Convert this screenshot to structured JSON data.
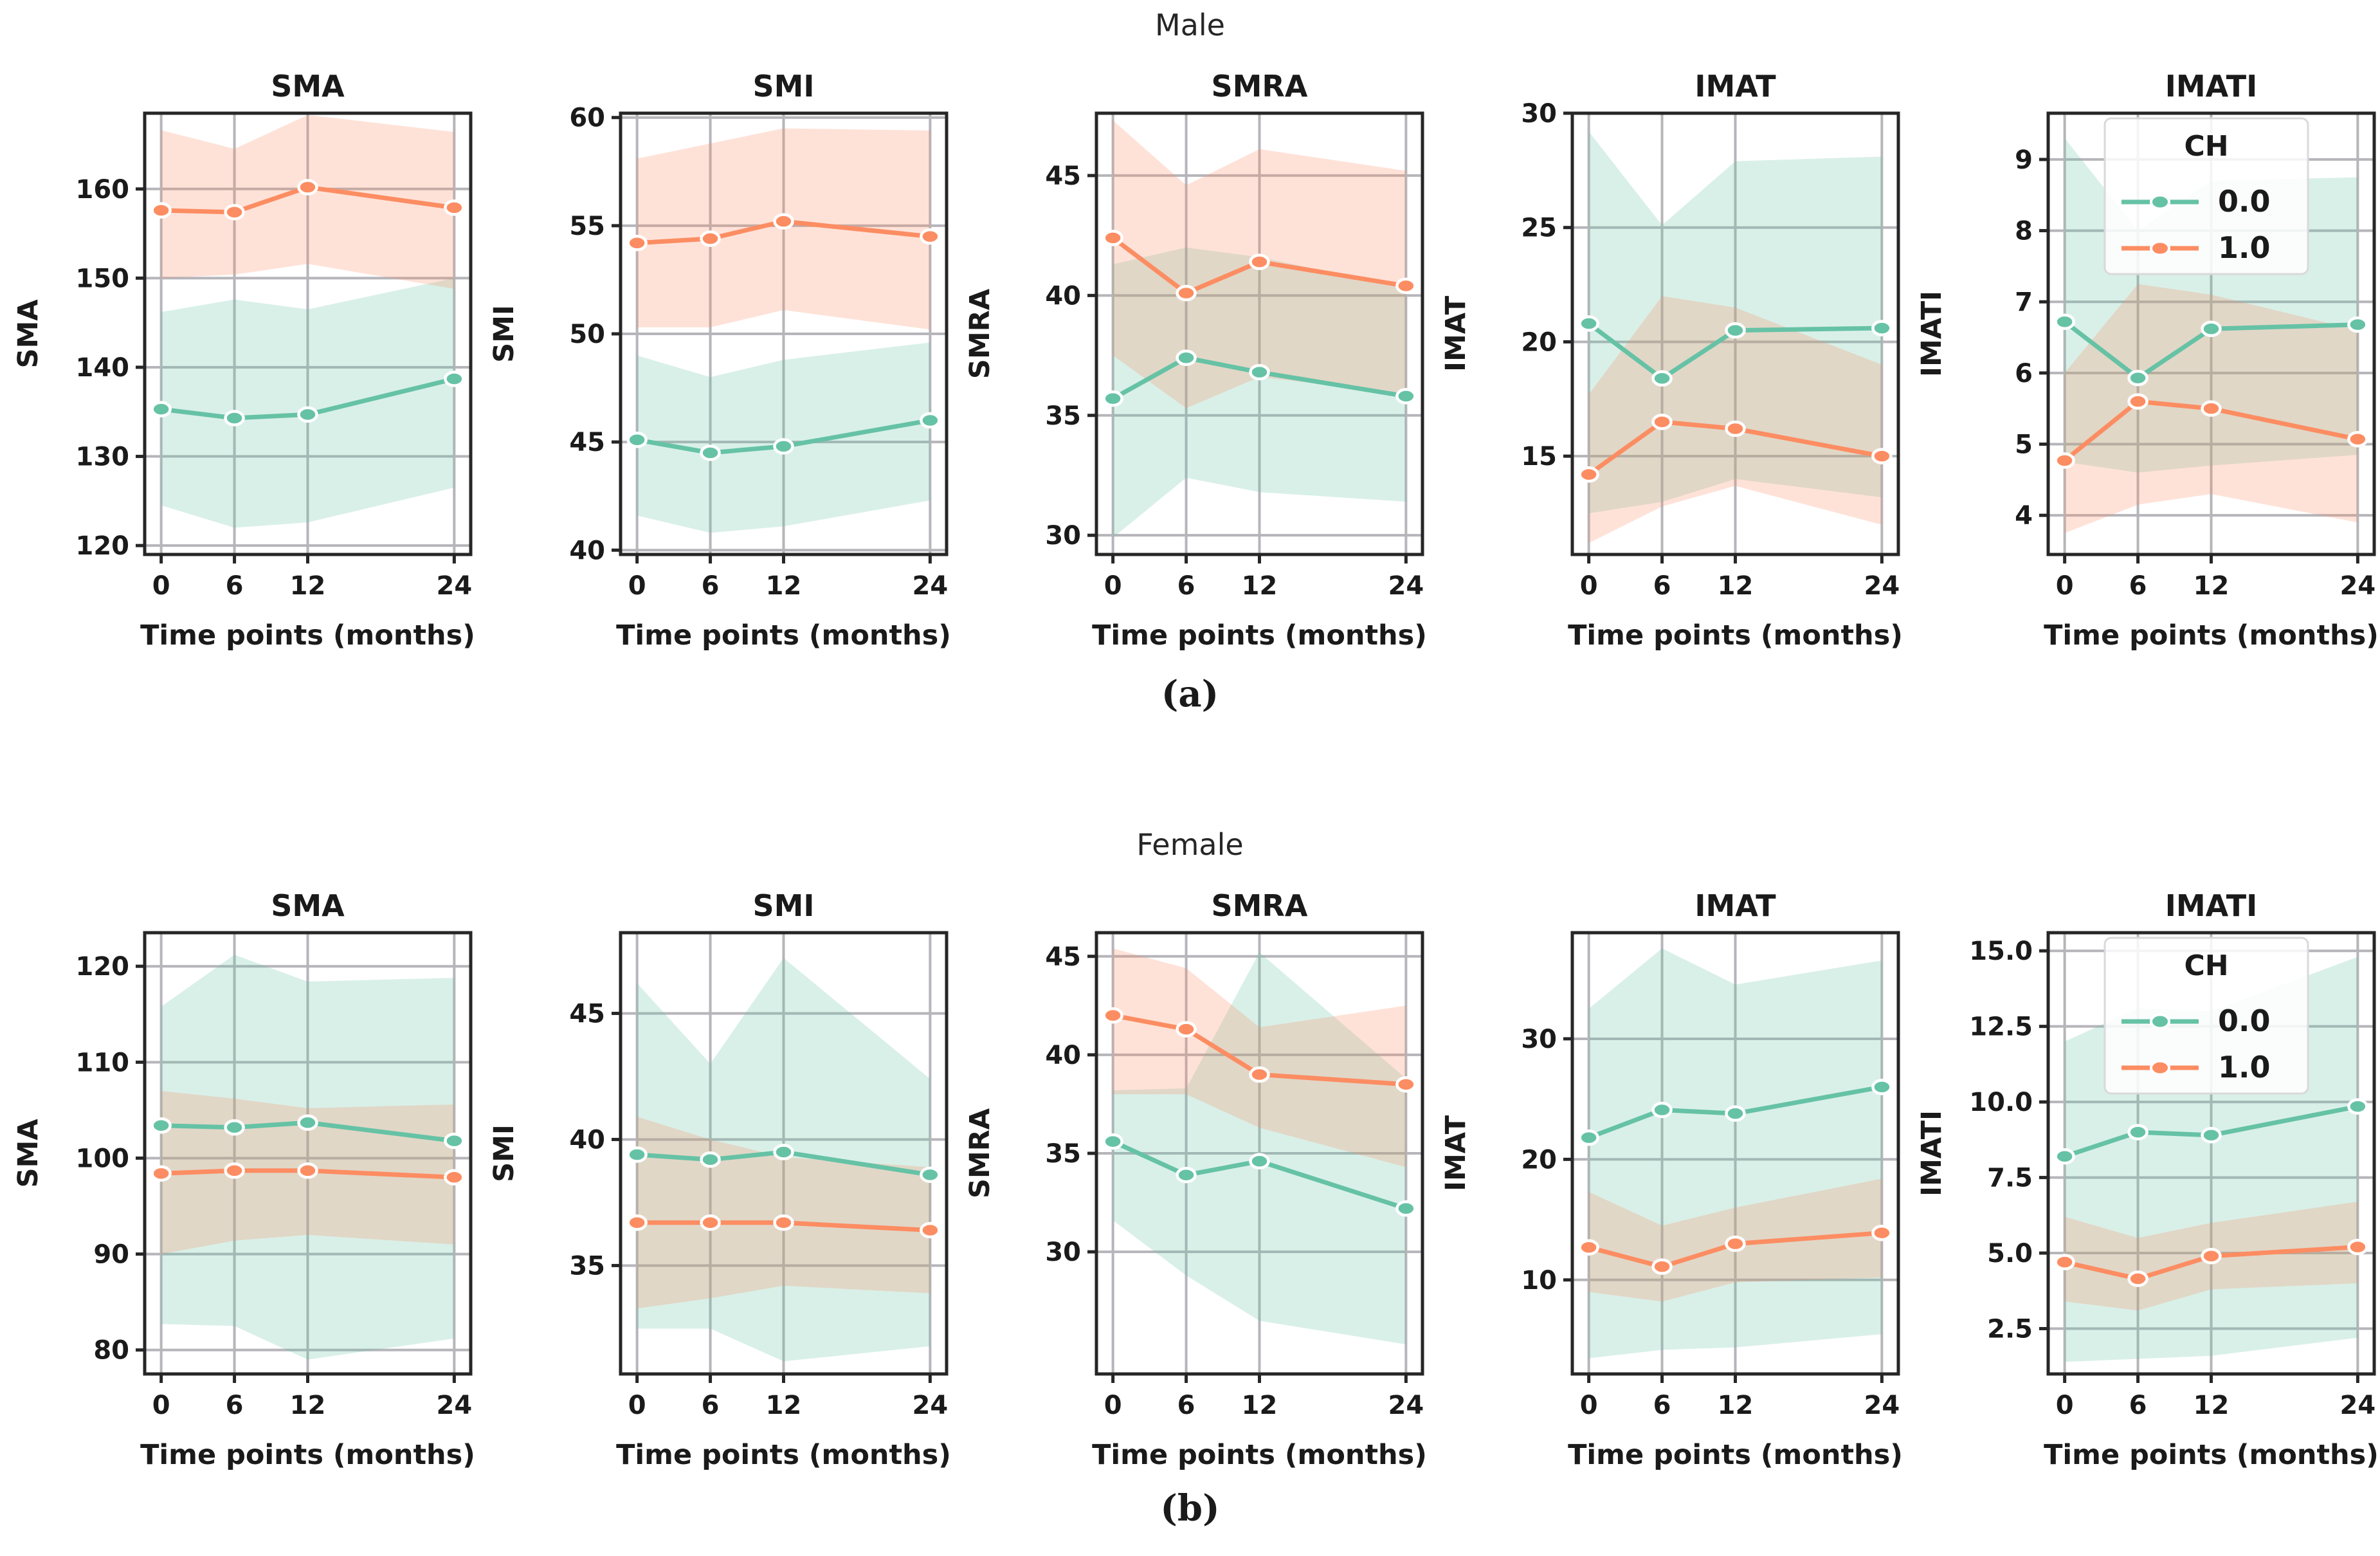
{
  "figure": {
    "suptitle_a": "Male",
    "suptitle_b": "Female",
    "caption_a": "(a)",
    "caption_b": "(b)",
    "xlabel": "Time points (months)",
    "legend": {
      "title": "CH",
      "entries": [
        {
          "label": "0.0",
          "color": "#66c2a5"
        },
        {
          "label": "1.0",
          "color": "#fc8d62"
        }
      ]
    }
  },
  "palette": {
    "teal": "#66c2a5",
    "orange": "#fc8d62",
    "grid": "#b5b5ba",
    "spine": "#262626",
    "band_opacity": 0.25
  },
  "chart_data": [
    {
      "type": "line",
      "row": "Male",
      "title": "SMA",
      "ylabel": "SMA",
      "x": [
        0,
        6,
        12,
        24
      ],
      "xtick_labels": [
        "0",
        "6",
        "12",
        "24"
      ],
      "ylim": [
        119,
        168.5
      ],
      "yticks": [
        120,
        130,
        140,
        150,
        160
      ],
      "ytick_labels": [
        "120",
        "130",
        "140",
        "150",
        "160"
      ],
      "legend": false,
      "series": [
        {
          "name": "0.0",
          "color": "#66c2a5",
          "values": [
            135.3,
            134.3,
            134.7,
            138.7
          ],
          "band_upper": [
            146.2,
            147.6,
            146.5,
            150.0
          ],
          "band_lower": [
            124.5,
            122.0,
            122.6,
            126.5
          ]
        },
        {
          "name": "1.0",
          "color": "#fc8d62",
          "values": [
            157.6,
            157.4,
            160.2,
            157.9
          ],
          "band_upper": [
            166.6,
            164.5,
            168.3,
            166.4
          ],
          "band_lower": [
            150.0,
            150.4,
            151.6,
            148.8
          ]
        }
      ]
    },
    {
      "type": "line",
      "row": "Male",
      "title": "SMI",
      "ylabel": "SMI",
      "x": [
        0,
        6,
        12,
        24
      ],
      "xtick_labels": [
        "0",
        "6",
        "12",
        "24"
      ],
      "ylim": [
        39.8,
        60.2
      ],
      "yticks": [
        40,
        45,
        50,
        55,
        60
      ],
      "ytick_labels": [
        "40",
        "45",
        "50",
        "55",
        "60"
      ],
      "legend": false,
      "series": [
        {
          "name": "0.0",
          "color": "#66c2a5",
          "values": [
            45.1,
            44.5,
            44.8,
            46.0
          ],
          "band_upper": [
            49.0,
            48.0,
            48.8,
            49.6
          ],
          "band_lower": [
            41.6,
            40.8,
            41.1,
            42.3
          ]
        },
        {
          "name": "1.0",
          "color": "#fc8d62",
          "values": [
            54.2,
            54.4,
            55.2,
            54.5
          ],
          "band_upper": [
            58.1,
            58.8,
            59.5,
            59.4
          ],
          "band_lower": [
            50.3,
            50.3,
            51.1,
            50.2
          ]
        }
      ]
    },
    {
      "type": "line",
      "row": "Male",
      "title": "SMRA",
      "ylabel": "SMRA",
      "x": [
        0,
        6,
        12,
        24
      ],
      "xtick_labels": [
        "0",
        "6",
        "12",
        "24"
      ],
      "ylim": [
        29.2,
        47.6
      ],
      "yticks": [
        30,
        35,
        40,
        45
      ],
      "ytick_labels": [
        "30",
        "35",
        "40",
        "45"
      ],
      "legend": false,
      "series": [
        {
          "name": "0.0",
          "color": "#66c2a5",
          "values": [
            35.7,
            37.4,
            36.8,
            35.8
          ],
          "band_upper": [
            41.3,
            42.0,
            41.6,
            40.3
          ],
          "band_lower": [
            29.9,
            32.4,
            31.8,
            31.4
          ]
        },
        {
          "name": "1.0",
          "color": "#fc8d62",
          "values": [
            42.4,
            40.1,
            41.4,
            40.4
          ],
          "band_upper": [
            47.3,
            44.6,
            46.1,
            45.2
          ],
          "band_lower": [
            37.5,
            35.3,
            36.6,
            35.9
          ]
        }
      ]
    },
    {
      "type": "line",
      "row": "Male",
      "title": "IMAT",
      "ylabel": "IMAT",
      "x": [
        0,
        6,
        12,
        24
      ],
      "xtick_labels": [
        "0",
        "6",
        "12",
        "24"
      ],
      "ylim": [
        10.7,
        30.0
      ],
      "yticks": [
        15,
        20,
        25,
        30
      ],
      "ytick_labels": [
        "15",
        "20",
        "25",
        "30"
      ],
      "legend": false,
      "series": [
        {
          "name": "0.0",
          "color": "#66c2a5",
          "values": [
            20.8,
            18.4,
            20.5,
            20.6
          ],
          "band_upper": [
            29.2,
            25.1,
            27.9,
            28.1
          ],
          "band_lower": [
            12.5,
            13.0,
            14.0,
            13.2
          ]
        },
        {
          "name": "1.0",
          "color": "#fc8d62",
          "values": [
            14.2,
            16.5,
            16.2,
            15.0
          ],
          "band_upper": [
            17.7,
            22.0,
            21.5,
            19.0
          ],
          "band_lower": [
            11.2,
            12.8,
            13.7,
            12.0
          ]
        }
      ]
    },
    {
      "type": "line",
      "row": "Male",
      "title": "IMATI",
      "ylabel": "IMATI",
      "x": [
        0,
        6,
        12,
        24
      ],
      "xtick_labels": [
        "0",
        "6",
        "12",
        "24"
      ],
      "ylim": [
        3.45,
        9.65
      ],
      "yticks": [
        4,
        5,
        6,
        7,
        8,
        9
      ],
      "ytick_labels": [
        "4",
        "5",
        "6",
        "7",
        "8",
        "9"
      ],
      "legend": true,
      "series": [
        {
          "name": "0.0",
          "color": "#66c2a5",
          "values": [
            6.72,
            5.93,
            6.62,
            6.68
          ],
          "band_upper": [
            9.3,
            8.0,
            8.7,
            8.75
          ],
          "band_lower": [
            4.75,
            4.6,
            4.7,
            4.85
          ]
        },
        {
          "name": "1.0",
          "color": "#fc8d62",
          "values": [
            4.77,
            5.6,
            5.5,
            5.07
          ],
          "band_upper": [
            6.0,
            7.25,
            7.1,
            6.6
          ],
          "band_lower": [
            3.75,
            4.15,
            4.3,
            3.9
          ]
        }
      ]
    },
    {
      "type": "line",
      "row": "Female",
      "title": "SMA",
      "ylabel": "SMA",
      "x": [
        0,
        6,
        12,
        24
      ],
      "xtick_labels": [
        "0",
        "6",
        "12",
        "24"
      ],
      "ylim": [
        77.5,
        123.5
      ],
      "yticks": [
        80,
        90,
        100,
        110,
        120
      ],
      "ytick_labels": [
        "80",
        "90",
        "100",
        "110",
        "120"
      ],
      "legend": false,
      "series": [
        {
          "name": "0.0",
          "color": "#66c2a5",
          "values": [
            103.4,
            103.2,
            103.7,
            101.8
          ],
          "band_upper": [
            115.8,
            121.2,
            118.4,
            118.8
          ],
          "band_lower": [
            82.7,
            82.5,
            79.0,
            81.2
          ]
        },
        {
          "name": "1.0",
          "color": "#fc8d62",
          "values": [
            98.4,
            98.7,
            98.7,
            98.0
          ],
          "band_upper": [
            107.0,
            106.2,
            105.2,
            105.6
          ],
          "band_lower": [
            90.0,
            91.4,
            92.0,
            91.0
          ]
        }
      ]
    },
    {
      "type": "line",
      "row": "Female",
      "title": "SMI",
      "ylabel": "SMI",
      "x": [
        0,
        6,
        12,
        24
      ],
      "xtick_labels": [
        "0",
        "6",
        "12",
        "24"
      ],
      "ylim": [
        30.7,
        48.2
      ],
      "yticks": [
        35,
        40,
        45
      ],
      "ytick_labels": [
        "35",
        "40",
        "45"
      ],
      "legend": false,
      "series": [
        {
          "name": "0.0",
          "color": "#66c2a5",
          "values": [
            39.4,
            39.2,
            39.5,
            38.6
          ],
          "band_upper": [
            46.2,
            43.0,
            47.2,
            42.4
          ],
          "band_lower": [
            32.5,
            32.5,
            31.2,
            31.8
          ]
        },
        {
          "name": "1.0",
          "color": "#fc8d62",
          "values": [
            36.7,
            36.7,
            36.7,
            36.4
          ],
          "band_upper": [
            40.9,
            40.0,
            39.3,
            38.9
          ],
          "band_lower": [
            33.3,
            33.7,
            34.2,
            33.9
          ]
        }
      ]
    },
    {
      "type": "line",
      "row": "Female",
      "title": "SMRA",
      "ylabel": "SMRA",
      "x": [
        0,
        6,
        12,
        24
      ],
      "xtick_labels": [
        "0",
        "6",
        "12",
        "24"
      ],
      "ylim": [
        23.8,
        46.2
      ],
      "yticks": [
        30,
        35,
        40,
        45
      ],
      "ytick_labels": [
        "30",
        "35",
        "40",
        "45"
      ],
      "legend": false,
      "series": [
        {
          "name": "0.0",
          "color": "#66c2a5",
          "values": [
            35.6,
            33.9,
            34.6,
            32.2
          ],
          "band_upper": [
            38.2,
            38.3,
            45.2,
            38.8
          ],
          "band_lower": [
            31.6,
            28.8,
            26.5,
            25.3
          ]
        },
        {
          "name": "1.0",
          "color": "#fc8d62",
          "values": [
            42.0,
            41.3,
            39.0,
            38.5
          ],
          "band_upper": [
            45.4,
            44.4,
            41.4,
            42.5
          ],
          "band_lower": [
            38.0,
            38.0,
            36.3,
            34.3
          ]
        }
      ]
    },
    {
      "type": "line",
      "row": "Female",
      "title": "IMAT",
      "ylabel": "IMAT",
      "x": [
        0,
        6,
        12,
        24
      ],
      "xtick_labels": [
        "0",
        "6",
        "12",
        "24"
      ],
      "ylim": [
        2.2,
        38.8
      ],
      "yticks": [
        10,
        20,
        30
      ],
      "ytick_labels": [
        "10",
        "20",
        "30"
      ],
      "legend": false,
      "series": [
        {
          "name": "0.0",
          "color": "#66c2a5",
          "values": [
            21.8,
            24.1,
            23.8,
            26.0
          ],
          "band_upper": [
            32.5,
            37.5,
            34.5,
            36.5
          ],
          "band_lower": [
            3.5,
            4.2,
            4.4,
            5.5
          ]
        },
        {
          "name": "1.0",
          "color": "#fc8d62",
          "values": [
            12.7,
            11.1,
            13.0,
            13.9
          ],
          "band_upper": [
            17.3,
            14.5,
            16.0,
            18.4
          ],
          "band_lower": [
            9.0,
            8.2,
            9.8,
            10.2
          ]
        }
      ]
    },
    {
      "type": "line",
      "row": "Female",
      "title": "IMATI",
      "ylabel": "IMATI",
      "x": [
        0,
        6,
        12,
        24
      ],
      "xtick_labels": [
        "0",
        "6",
        "12",
        "24"
      ],
      "ylim": [
        1.0,
        15.6
      ],
      "yticks": [
        2.5,
        5.0,
        7.5,
        10.0,
        12.5,
        15.0
      ],
      "ytick_labels": [
        "2.5",
        "5.0",
        "7.5",
        "10.0",
        "12.5",
        "15.0"
      ],
      "legend": true,
      "series": [
        {
          "name": "0.0",
          "color": "#66c2a5",
          "values": [
            8.2,
            9.0,
            8.9,
            9.85
          ],
          "band_upper": [
            12.0,
            13.1,
            13.0,
            14.8
          ],
          "band_lower": [
            1.4,
            1.5,
            1.6,
            2.2
          ]
        },
        {
          "name": "1.0",
          "color": "#fc8d62",
          "values": [
            4.7,
            4.15,
            4.9,
            5.2
          ],
          "band_upper": [
            6.2,
            5.5,
            6.0,
            6.7
          ],
          "band_lower": [
            3.4,
            3.1,
            3.8,
            4.0
          ]
        }
      ]
    }
  ]
}
